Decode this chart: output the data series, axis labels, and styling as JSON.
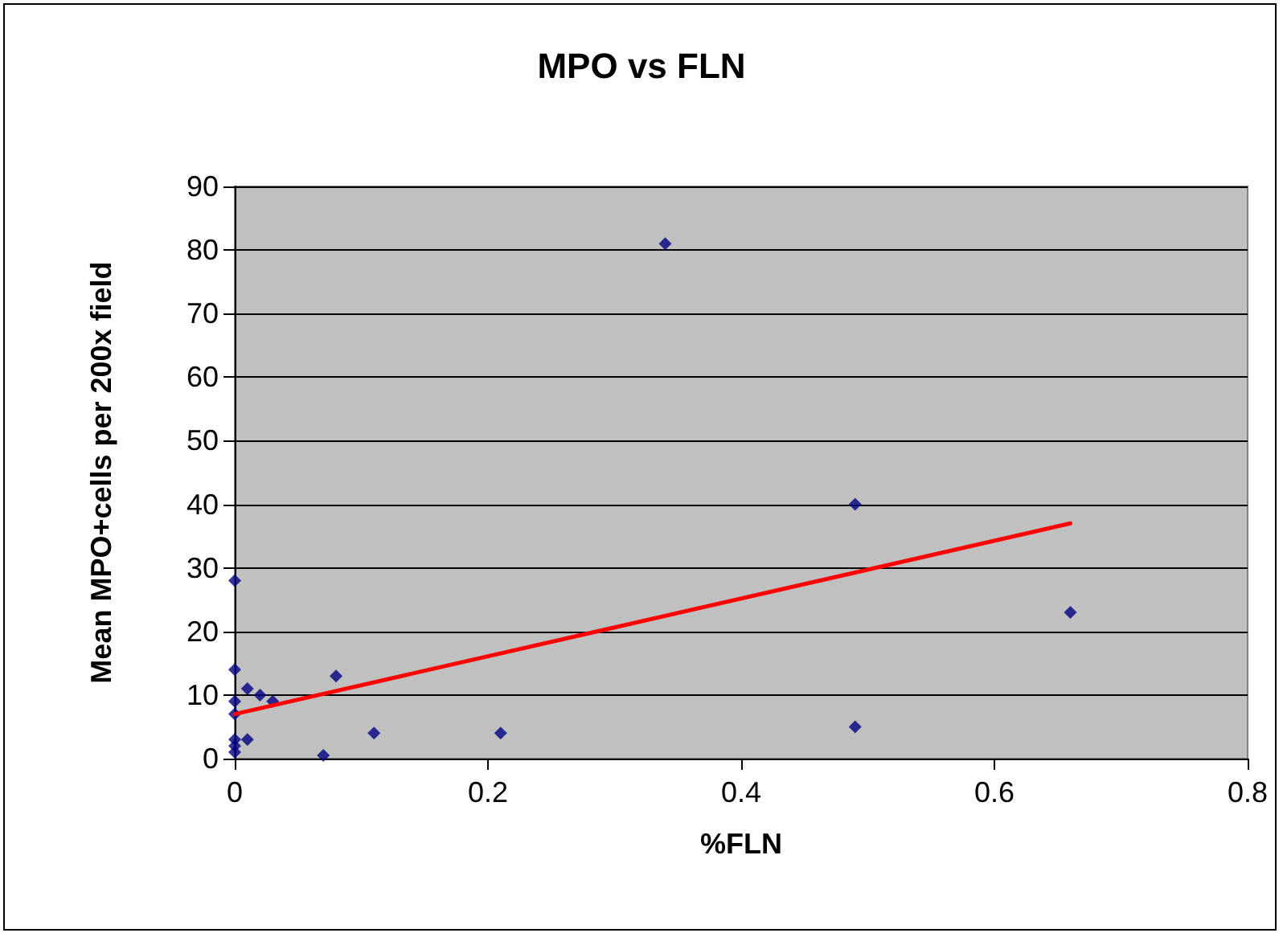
{
  "chart_data": {
    "type": "scatter",
    "title": "MPO vs FLN",
    "xlabel": "%FLN",
    "ylabel": "Mean MPO+cells per 200x field",
    "xlim": [
      0,
      0.8
    ],
    "xticks": [
      0,
      0.2,
      0.4,
      0.6,
      0.8
    ],
    "ylim": [
      0,
      90
    ],
    "yticks": [
      0,
      10,
      20,
      30,
      40,
      50,
      60,
      70,
      80,
      90
    ],
    "grid": "y",
    "marker": "diamond",
    "series": [
      {
        "color": "#000080",
        "x": [
          0,
          0,
          0,
          0,
          0,
          0,
          0,
          0.01,
          0.02,
          0.03,
          0.01,
          0.08,
          0.07,
          0.11,
          0.21,
          0.34,
          0.49,
          0.49,
          0.66
        ],
        "values": [
          28,
          14,
          9,
          7,
          3,
          2,
          1,
          11,
          10,
          9,
          3,
          13,
          0.5,
          4,
          4,
          81,
          40,
          5,
          23
        ]
      },
      {
        "type": "line",
        "color": "#ff0000",
        "x": [
          0,
          0.66
        ],
        "values": [
          7,
          37
        ],
        "marker": "none",
        "line_style": "solid"
      }
    ]
  }
}
